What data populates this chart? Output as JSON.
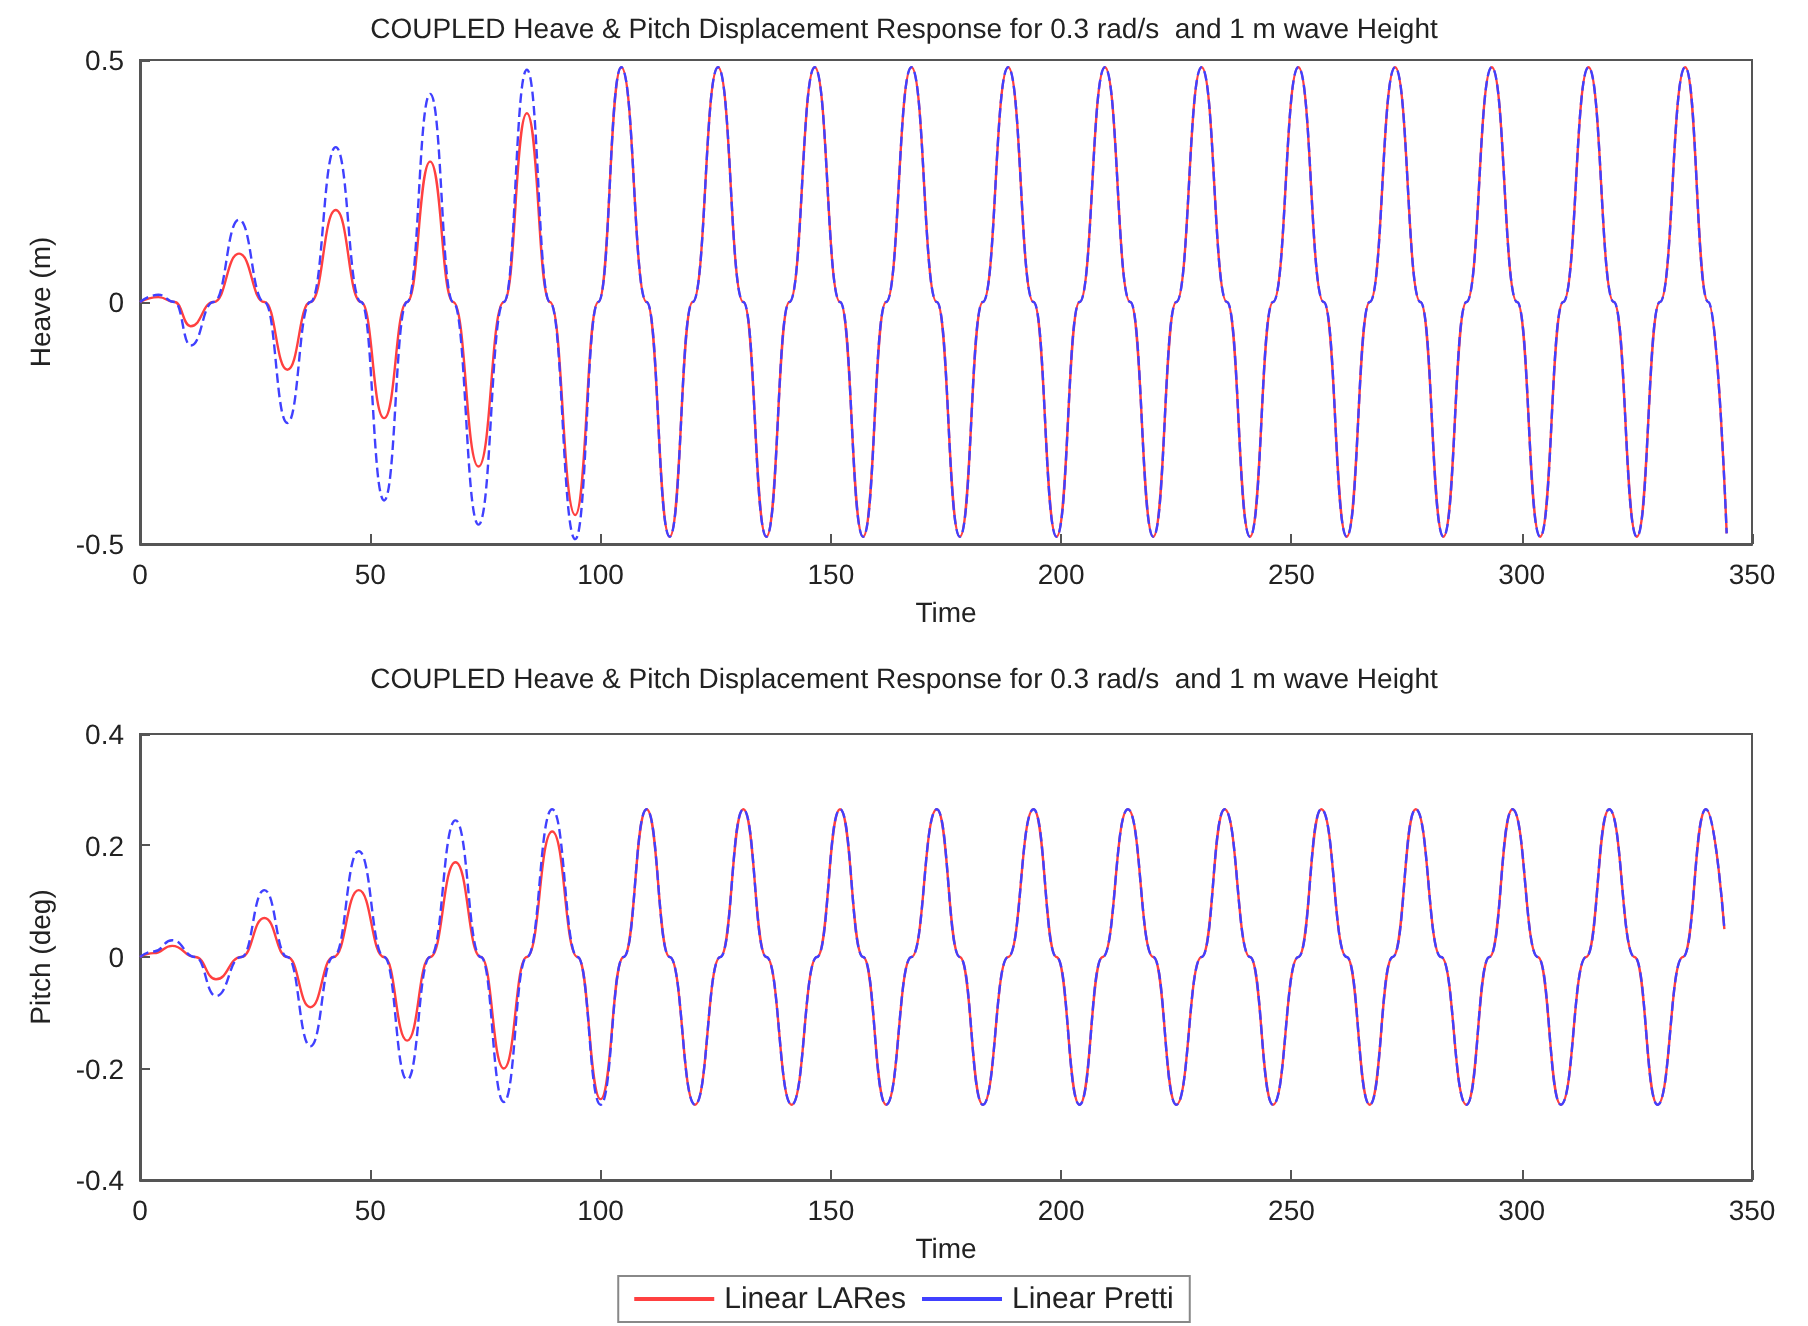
{
  "chart_data": [
    {
      "type": "line",
      "title": "COUPLED Heave & Pitch Displacement Response for 0.3 rad/s  and 1 m wave Height",
      "xlabel": "Time",
      "ylabel": "Heave (m)",
      "x": [
        0,
        4,
        7.5,
        11,
        16,
        21.5,
        27,
        32,
        37,
        42.5,
        48,
        53,
        58,
        63,
        68,
        73.5,
        79,
        84,
        89,
        94.5,
        99.5,
        104.5,
        110,
        115,
        120,
        125.5,
        131,
        136,
        141,
        146.5,
        152,
        157,
        162,
        167.5,
        173,
        178,
        183,
        188.5,
        194,
        199,
        204,
        209.5,
        215,
        220,
        225,
        230.5,
        236,
        241,
        246,
        251.5,
        257,
        262,
        267,
        272.5,
        278,
        283,
        288,
        293.5,
        299,
        304,
        309,
        314.5,
        320,
        325,
        330,
        335.5,
        340.5,
        344.5
      ],
      "series": [
        {
          "color": "#ff4040",
          "line_style": "solid",
          "values": [
            0,
            0.01,
            0,
            -0.05,
            0,
            0.1,
            0,
            -0.14,
            0,
            0.19,
            0,
            -0.24,
            0,
            0.29,
            0,
            -0.34,
            0,
            0.39,
            0,
            -0.44,
            0,
            0.485,
            0,
            -0.485,
            0,
            0.485,
            0,
            -0.485,
            0,
            0.485,
            0,
            -0.485,
            0,
            0.485,
            0,
            -0.485,
            0,
            0.485,
            0,
            -0.485,
            0,
            0.485,
            0,
            -0.485,
            0,
            0.485,
            0,
            -0.485,
            0,
            0.485,
            0,
            -0.485,
            0,
            0.485,
            0,
            -0.485,
            0,
            0.485,
            0,
            -0.485,
            0,
            0.485,
            0,
            -0.485,
            0,
            0.485,
            0,
            -0.478
          ]
        },
        {
          "color": "#4040ff",
          "line_style": "dashed",
          "values": [
            0,
            0.015,
            0,
            -0.09,
            0,
            0.17,
            0,
            -0.25,
            0,
            0.32,
            0,
            -0.41,
            0,
            0.43,
            0,
            -0.46,
            0,
            0.48,
            0,
            -0.49,
            0,
            0.485,
            0,
            -0.485,
            0,
            0.485,
            0,
            -0.485,
            0,
            0.485,
            0,
            -0.485,
            0,
            0.485,
            0,
            -0.485,
            0,
            0.485,
            0,
            -0.485,
            0,
            0.485,
            0,
            -0.485,
            0,
            0.485,
            0,
            -0.485,
            0,
            0.485,
            0,
            -0.485,
            0,
            0.485,
            0,
            -0.485,
            0,
            0.485,
            0,
            -0.485,
            0,
            0.485,
            0,
            -0.485,
            0,
            0.485,
            0,
            -0.478
          ]
        }
      ],
      "xlim": [
        0,
        350
      ],
      "xticks": [
        0,
        50,
        100,
        150,
        200,
        250,
        300,
        350
      ],
      "ylim": [
        -0.5,
        0.5
      ],
      "yticks": [
        -0.5,
        0,
        0.5
      ],
      "grid": false,
      "legend": false,
      "marker": "none"
    },
    {
      "type": "line",
      "title": "COUPLED Heave & Pitch Displacement Response for 0.3 rad/s  and 1 m wave Height",
      "xlabel": "Time",
      "ylabel": "Pitch (deg)",
      "x": [
        0,
        3,
        7,
        12,
        16.5,
        22,
        27,
        32,
        37,
        42,
        47.5,
        53,
        58,
        63,
        68.5,
        74,
        79,
        84,
        89.5,
        95,
        100,
        105,
        110,
        115,
        120.5,
        126,
        131,
        136,
        141.5,
        147,
        152,
        157,
        162,
        167.5,
        173,
        178,
        183,
        188.5,
        194,
        199,
        204,
        209,
        214.5,
        220,
        225,
        230.5,
        235.5,
        241,
        246,
        251.5,
        256.5,
        262,
        267,
        272,
        277,
        282.5,
        288,
        293,
        298,
        303.5,
        308.5,
        314,
        319,
        324.5,
        329.5,
        335,
        340,
        344
      ],
      "series": [
        {
          "name": "Linear LARes",
          "color": "#ff4040",
          "line_style": "solid",
          "values": [
            0,
            0.007,
            0.02,
            0,
            -0.04,
            0,
            0.07,
            0,
            -0.09,
            0,
            0.12,
            0,
            -0.15,
            0,
            0.17,
            0,
            -0.2,
            0,
            0.225,
            0,
            -0.255,
            0,
            0.265,
            0,
            -0.265,
            0,
            0.265,
            0,
            -0.265,
            0,
            0.265,
            0,
            -0.265,
            0,
            0.265,
            0,
            -0.265,
            0,
            0.265,
            0,
            -0.265,
            0,
            0.265,
            0,
            -0.265,
            0,
            0.265,
            0,
            -0.265,
            0,
            0.265,
            0,
            -0.265,
            0,
            0.265,
            0,
            -0.265,
            0,
            0.265,
            0,
            -0.265,
            0,
            0.265,
            0,
            -0.265,
            0,
            0.265,
            0.05
          ]
        },
        {
          "name": "Linear Pretti",
          "color": "#4040ff",
          "line_style": "dashed",
          "values": [
            0,
            0.01,
            0.03,
            0,
            -0.07,
            0,
            0.12,
            0,
            -0.16,
            0,
            0.19,
            0,
            -0.22,
            0,
            0.245,
            0,
            -0.26,
            0,
            0.265,
            0,
            -0.265,
            0,
            0.265,
            0,
            -0.265,
            0,
            0.265,
            0,
            -0.265,
            0,
            0.265,
            0,
            -0.265,
            0,
            0.265,
            0,
            -0.265,
            0,
            0.265,
            0,
            -0.265,
            0,
            0.265,
            0,
            -0.265,
            0,
            0.265,
            0,
            -0.265,
            0,
            0.265,
            0,
            -0.265,
            0,
            0.265,
            0,
            -0.265,
            0,
            0.265,
            0,
            -0.265,
            0,
            0.265,
            0,
            -0.265,
            0,
            0.265,
            0.05
          ]
        }
      ],
      "xlim": [
        0,
        350
      ],
      "xticks": [
        0,
        50,
        100,
        150,
        200,
        250,
        300,
        350
      ],
      "ylim": [
        -0.4,
        0.4
      ],
      "yticks": [
        -0.4,
        -0.2,
        0,
        0.2,
        0.4
      ],
      "grid": false,
      "legend": "bottom",
      "marker": "none"
    }
  ]
}
